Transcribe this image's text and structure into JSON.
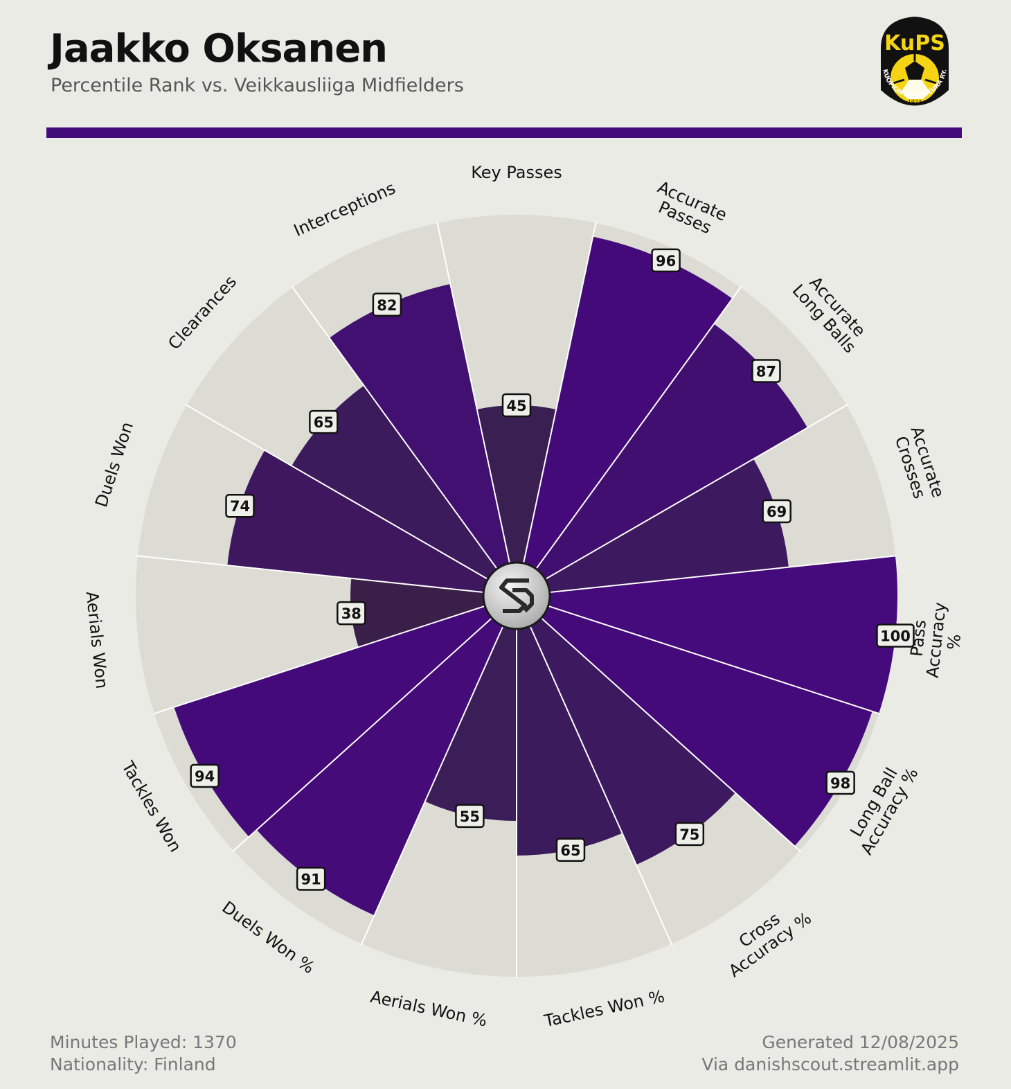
{
  "header": {
    "title": "Jaakko Oksanen",
    "subtitle": "Percentile Rank vs. Veikkausliiga Midfielders"
  },
  "logo": {
    "text": "KuPS",
    "year": "1923",
    "ring": "KUOPION PALLOSEURA RY."
  },
  "chart_data": {
    "type": "polar_bar",
    "categories": [
      "Key Passes",
      "Accurate\nPasses",
      "Accurate\nLong Balls",
      "Accurate\nCrosses",
      "Pass\nAccuracy %",
      "Long Ball\nAccuracy %",
      "Cross\nAccuracy %",
      "Tackles Won %",
      "Aerials Won %",
      "Duels Won %",
      "Tackles Won",
      "Aerials Won",
      "Duels Won",
      "Clearances",
      "Interceptions"
    ],
    "values": [
      45,
      96,
      87,
      69,
      100,
      98,
      75,
      65,
      55,
      91,
      94,
      38,
      74,
      65,
      82
    ],
    "colors": [
      "#3a1f52",
      "#440a7a",
      "#410f70",
      "#3d1a5f",
      "#450a7c",
      "#440a7a",
      "#3d1a5f",
      "#3c1b5c",
      "#3b1d57",
      "#440b79",
      "#440a7a",
      "#3a2048",
      "#3e175f",
      "#3c1b5c",
      "#411070"
    ],
    "background_color": "#dcdcd5",
    "ylim": [
      0,
      100
    ]
  },
  "footer": {
    "minutes": "Minutes Played: 1370",
    "nationality": "Nationality: Finland",
    "generated": "Generated 12/08/2025",
    "via": "Via danishscout.streamlit.app"
  }
}
